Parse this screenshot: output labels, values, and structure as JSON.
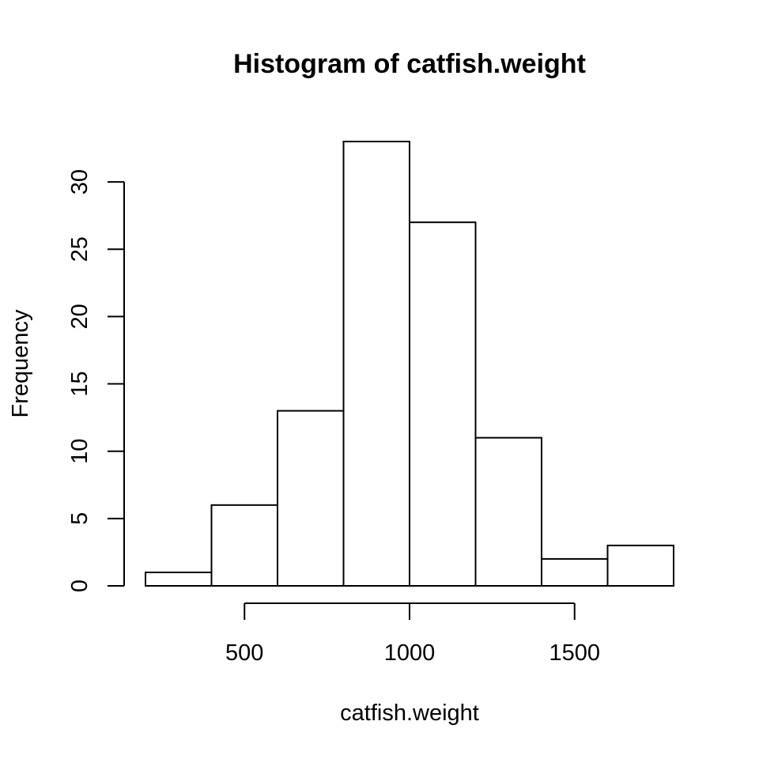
{
  "chart_data": {
    "type": "bar",
    "title": "Histogram of catfish.weight",
    "xlabel": "catfish.weight",
    "ylabel": "Frequency",
    "bins": [
      {
        "start": 200,
        "end": 400,
        "count": 1
      },
      {
        "start": 400,
        "end": 600,
        "count": 6
      },
      {
        "start": 600,
        "end": 800,
        "count": 13
      },
      {
        "start": 800,
        "end": 1000,
        "count": 33
      },
      {
        "start": 1000,
        "end": 1200,
        "count": 27
      },
      {
        "start": 1200,
        "end": 1400,
        "count": 11
      },
      {
        "start": 1400,
        "end": 1600,
        "count": 2
      },
      {
        "start": 1600,
        "end": 1800,
        "count": 3
      }
    ],
    "x_ticks": [
      {
        "value": 500,
        "label": "500"
      },
      {
        "value": 1000,
        "label": "1000"
      },
      {
        "value": 1500,
        "label": "1500"
      }
    ],
    "y_ticks": [
      {
        "value": 0,
        "label": "0"
      },
      {
        "value": 5,
        "label": "5"
      },
      {
        "value": 10,
        "label": "10"
      },
      {
        "value": 15,
        "label": "15"
      },
      {
        "value": 20,
        "label": "20"
      },
      {
        "value": 25,
        "label": "25"
      },
      {
        "value": 30,
        "label": "30"
      }
    ],
    "xlim": [
      200,
      1800
    ],
    "ylim": [
      0,
      33
    ],
    "grid": false,
    "legend": "none",
    "bar_fill": "#ffffff",
    "stroke_color": "#000000"
  }
}
